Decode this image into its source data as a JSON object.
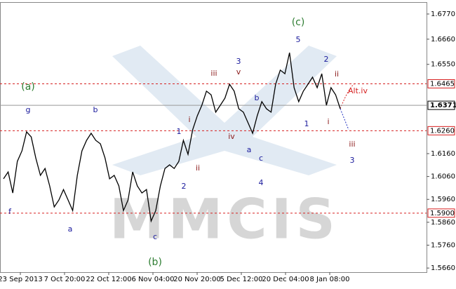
{
  "chart_data": {
    "type": "line",
    "watermark": "MMCIS",
    "color": "#000000",
    "values": [
      1.605,
      1.608,
      1.5988,
      1.6126,
      1.6172,
      1.6255,
      1.6233,
      1.6141,
      1.6065,
      1.6095,
      1.6019,
      1.5927,
      1.5957,
      1.6003,
      1.5957,
      1.5911,
      1.6065,
      1.6172,
      1.6218,
      1.6249,
      1.6218,
      1.6203,
      1.6141,
      1.605,
      1.6065,
      1.6019,
      1.5911,
      1.5957,
      1.608,
      1.6019,
      1.5988,
      1.6003,
      1.5865,
      1.5911,
      1.6019,
      1.6095,
      1.6111,
      1.6095,
      1.6126,
      1.6218,
      1.6157,
      1.6264,
      1.6325,
      1.6371,
      1.6433,
      1.6417,
      1.6341,
      1.6371,
      1.6402,
      1.6463,
      1.6433,
      1.6356,
      1.6341,
      1.6295,
      1.6249,
      1.6325,
      1.6387,
      1.6356,
      1.6341,
      1.6463,
      1.6525,
      1.6509,
      1.6601,
      1.6448,
      1.6387,
      1.6433,
      1.6463,
      1.6494,
      1.6448,
      1.6509,
      1.6371,
      1.6448,
      1.6417,
      1.6356
    ],
    "ylim": [
      1.5642,
      1.6822
    ],
    "yticks": [
      {
        "value": 1.566,
        "label": "1.5660"
      },
      {
        "value": 1.576,
        "label": "1.5760"
      },
      {
        "value": 1.586,
        "label": "1.5860"
      },
      {
        "value": 1.596,
        "label": "1.5960"
      },
      {
        "value": 1.606,
        "label": "1.6060"
      },
      {
        "value": 1.616,
        "label": "1.6160"
      },
      {
        "value": 1.655,
        "label": "1.6550"
      },
      {
        "value": 1.666,
        "label": "1.6660"
      },
      {
        "value": 1.677,
        "label": "1.6770"
      }
    ],
    "levels": [
      {
        "value": 1.6465,
        "label": "1.6465"
      },
      {
        "value": 1.626,
        "label": "1.6260"
      },
      {
        "value": 1.59,
        "label": "1.5900"
      }
    ],
    "current_price": 1.6371,
    "xlabels": [
      "23 Sep 2013",
      "7 Oct 20:00",
      "22 Oct 12:00",
      "6 Nov 04:00",
      "20 Nov 20:00",
      "5 Dec 12:00",
      "20 Dec 04:00",
      "8 Jan 08:00"
    ],
    "annotations": [
      {
        "text": "(c)",
        "color": "#2e7d32"
      },
      {
        "text": "5",
        "color": "#1a1a9c"
      },
      {
        "text": "3",
        "color": "#1a1a9c"
      },
      {
        "text": "v",
        "color": "#8b1a1a"
      },
      {
        "text": "iii",
        "color": "#8b1a1a"
      },
      {
        "text": "2",
        "color": "#1a1a9c"
      },
      {
        "text": "ii",
        "color": "#8b1a1a"
      },
      {
        "text": "Alt.iv",
        "color": "#d62020"
      },
      {
        "text": "(a)",
        "color": "#2e7d32"
      },
      {
        "text": "g",
        "color": "#1a1a9c"
      },
      {
        "text": "b",
        "color": "#1a1a9c"
      },
      {
        "text": "b",
        "color": "#1a1a9c"
      },
      {
        "text": "i",
        "color": "#8b1a1a"
      },
      {
        "text": "1",
        "color": "#1a1a9c"
      },
      {
        "text": "iv",
        "color": "#8b1a1a"
      },
      {
        "text": "1",
        "color": "#1a1a9c"
      },
      {
        "text": "i",
        "color": "#8b1a1a"
      },
      {
        "text": "a",
        "color": "#1a1a9c"
      },
      {
        "text": "c",
        "color": "#1a1a9c"
      },
      {
        "text": "iii",
        "color": "#8b1a1a"
      },
      {
        "text": "3",
        "color": "#1a1a9c"
      },
      {
        "text": "ii",
        "color": "#8b1a1a"
      },
      {
        "text": "2",
        "color": "#1a1a9c"
      },
      {
        "text": "4",
        "color": "#1a1a9c"
      },
      {
        "text": "f",
        "color": "#1a1a9c"
      },
      {
        "text": "a",
        "color": "#1a1a9c"
      },
      {
        "text": "c",
        "color": "#1a1a9c"
      },
      {
        "text": "(b)",
        "color": "#2e7d32"
      }
    ]
  }
}
